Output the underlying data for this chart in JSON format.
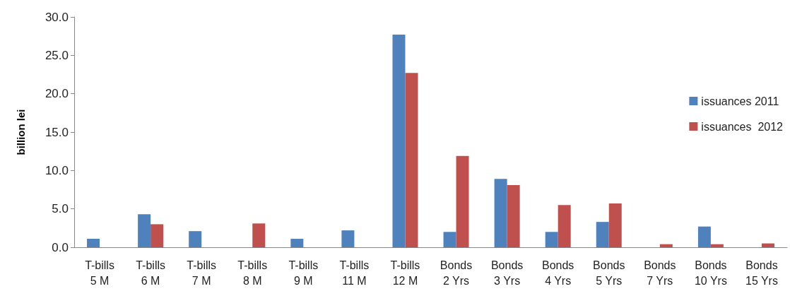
{
  "chart_data": {
    "type": "bar",
    "ylabel": "billion lei",
    "categories": [
      "T-bills\n5 M",
      "T-bills\n6 M",
      "T-bills\n7 M",
      "T-bills\n8 M",
      "T-bills\n9 M",
      "T-bills\n11 M",
      "T-bills\n12 M",
      "Bonds\n2 Yrs",
      "Bonds\n3 Yrs",
      "Bonds\n4 Yrs",
      "Bonds\n5 Yrs",
      "Bonds\n7 Yrs",
      "Bonds\n10 Yrs",
      "Bonds\n15 Yrs"
    ],
    "series": [
      {
        "name": "issuances 2011",
        "color": "#4f81bd",
        "values": [
          1.1,
          4.3,
          2.1,
          null,
          1.1,
          2.2,
          27.7,
          2.0,
          8.9,
          2.0,
          3.3,
          null,
          2.7,
          null
        ]
      },
      {
        "name": "issuances  2012",
        "color": "#c0504d",
        "values": [
          null,
          3.0,
          null,
          3.1,
          null,
          null,
          22.7,
          11.9,
          8.1,
          5.5,
          5.7,
          0.4,
          0.4,
          0.5
        ]
      }
    ],
    "ylim": [
      0,
      30
    ],
    "yticks": [
      {
        "value": 0,
        "label": "0.0"
      },
      {
        "value": 5,
        "label": "5.0"
      },
      {
        "value": 10,
        "label": "10.0"
      },
      {
        "value": 15,
        "label": "15.0"
      },
      {
        "value": 20,
        "label": "20.0"
      },
      {
        "value": 25,
        "label": "25.0"
      },
      {
        "value": 30,
        "label": "30.0"
      }
    ],
    "grid": false,
    "legend": "right"
  }
}
